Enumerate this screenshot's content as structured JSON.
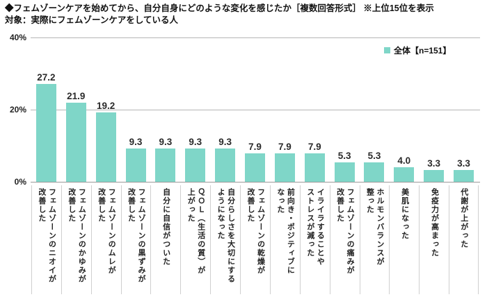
{
  "header": {
    "title": "◆フェムゾーンケアを始めてから、自分自身にどのような変化を感じたか［複数回答形式］ ※上位15位を表示",
    "subtitle": "対象：実際にフェムゾーンケアをしている人"
  },
  "legend": {
    "label": "全体【n=151】"
  },
  "colors": {
    "bar": "#7fd6c8",
    "grid": "#b5b5b5",
    "axis": "#999999",
    "separator": "#cfcfcf",
    "text": "#222222"
  },
  "chart_data": {
    "type": "bar",
    "title": "フェムゾーンケアを始めてから、自分自身にどのような変化を感じたか（複数回答形式・上位15位）",
    "series_name": "全体",
    "n": "n=151",
    "categories": [
      "フェムゾーンのニオイが\n改善した",
      "フェムゾーンのかゆみが\n改善した",
      "フェムゾーンのムレが\n改善した",
      "フェムゾーンの黒ずみが\n改善した",
      "自分に自信がついた",
      "ＱＯＬ（生活の質）が\n上がった",
      "自分らしさを大切にする\nようになった",
      "フェムゾーンの乾燥が\n改善した",
      "前向き・ポジティブに\nなった",
      "イライラすることや\nストレスが減った",
      "フェムゾーンの痛みが\n改善した",
      "ホルモンバランスが\n整った",
      "美肌になった",
      "免疫力が高まった",
      "代謝が上がった"
    ],
    "values": [
      27.2,
      21.9,
      19.2,
      9.3,
      9.3,
      9.3,
      9.3,
      7.9,
      7.9,
      7.9,
      5.3,
      5.3,
      4.0,
      3.3,
      3.3
    ],
    "xlabel": "",
    "ylabel": "",
    "ylim": [
      0,
      40
    ],
    "y_ticks": [
      {
        "label": "40%",
        "value": 40
      },
      {
        "label": "20%",
        "value": 20
      },
      {
        "label": "0%",
        "value": 0
      }
    ],
    "grid": true,
    "legend_position": "top-right",
    "value_labels": true
  }
}
